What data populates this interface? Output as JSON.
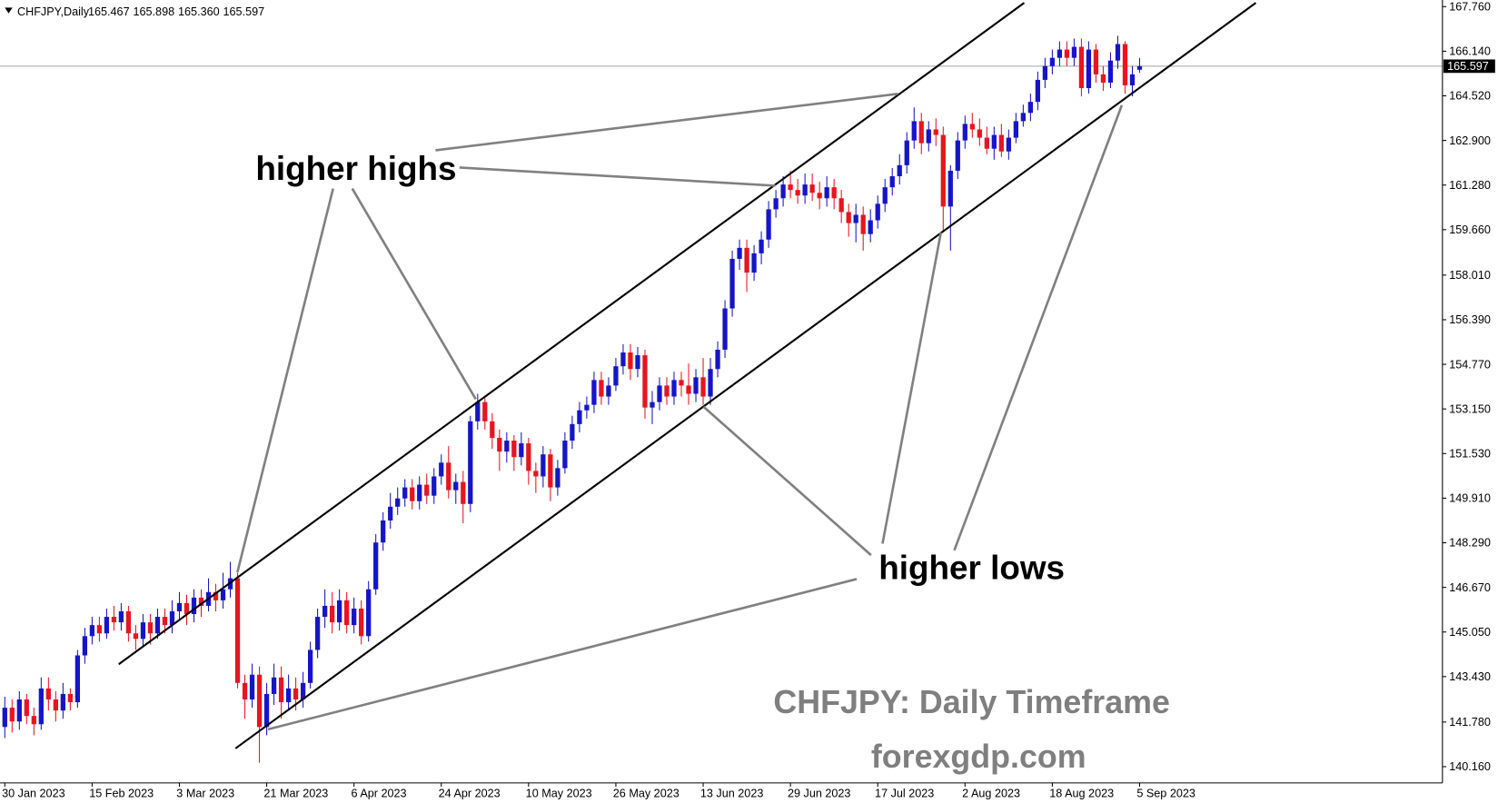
{
  "chart_data": {
    "type": "candlestick",
    "symbol": "CHFJPY,Daily",
    "ohlc_labels": [
      "165.467",
      "165.898",
      "165.360",
      "165.597"
    ],
    "price_line": {
      "value": 165.597,
      "label": "165.597"
    },
    "annotations": [
      "higher highs",
      "higher lows"
    ],
    "watermark": [
      "CHFJPY: Daily Timeframe",
      "forexgdp.com"
    ],
    "up_color": "#1515c8",
    "down_color": "#e8141e",
    "grid": false,
    "ylim": [
      139.57,
      168.0
    ],
    "yticks": [
      {
        "value": 167.76,
        "label": "167.760"
      },
      {
        "value": 166.14,
        "label": "166.140"
      },
      {
        "value": 164.52,
        "label": "164.520"
      },
      {
        "value": 162.9,
        "label": "162.900"
      },
      {
        "value": 161.28,
        "label": "161.280"
      },
      {
        "value": 159.66,
        "label": "159.660"
      },
      {
        "value": 158.01,
        "label": "158.010"
      },
      {
        "value": 156.39,
        "label": "156.390"
      },
      {
        "value": 154.77,
        "label": "154.770"
      },
      {
        "value": 153.15,
        "label": "153.150"
      },
      {
        "value": 151.53,
        "label": "151.530"
      },
      {
        "value": 149.91,
        "label": "149.910"
      },
      {
        "value": 148.29,
        "label": "148.290"
      },
      {
        "value": 146.67,
        "label": "146.670"
      },
      {
        "value": 145.05,
        "label": "145.050"
      },
      {
        "value": 143.43,
        "label": "143.430"
      },
      {
        "value": 141.78,
        "label": "141.780"
      },
      {
        "value": 140.16,
        "label": "140.160"
      }
    ],
    "categories": [
      "30 Jan 2023",
      null,
      null,
      null,
      null,
      null,
      null,
      null,
      null,
      null,
      null,
      null,
      "15 Feb 2023",
      null,
      null,
      null,
      null,
      null,
      null,
      null,
      null,
      null,
      null,
      null,
      "3 Mar 2023",
      null,
      null,
      null,
      null,
      null,
      null,
      null,
      null,
      null,
      null,
      null,
      "21 Mar 2023",
      null,
      null,
      null,
      null,
      null,
      null,
      null,
      null,
      null,
      null,
      null,
      "6 Apr 2023",
      null,
      null,
      null,
      null,
      null,
      null,
      null,
      null,
      null,
      null,
      null,
      "24 Apr 2023",
      null,
      null,
      null,
      null,
      null,
      null,
      null,
      null,
      null,
      null,
      null,
      "10 May 2023",
      null,
      null,
      null,
      null,
      null,
      null,
      null,
      null,
      null,
      null,
      null,
      "26 May 2023",
      null,
      null,
      null,
      null,
      null,
      null,
      null,
      null,
      null,
      null,
      null,
      "13 Jun 2023",
      null,
      null,
      null,
      null,
      null,
      null,
      null,
      null,
      null,
      null,
      null,
      "29 Jun 2023",
      null,
      null,
      null,
      null,
      null,
      null,
      null,
      null,
      null,
      null,
      null,
      "17 Jul 2023",
      null,
      null,
      null,
      null,
      null,
      null,
      null,
      null,
      null,
      null,
      null,
      "2 Aug 2023",
      null,
      null,
      null,
      null,
      null,
      null,
      null,
      null,
      null,
      null,
      null,
      "18 Aug 2023",
      null,
      null,
      null,
      null,
      null,
      null,
      null,
      null,
      null,
      null,
      null,
      "5 Sep 2023"
    ],
    "ohlc": [
      [
        141.6,
        142.7,
        141.2,
        142.3
      ],
      [
        142.3,
        142.6,
        141.4,
        141.8
      ],
      [
        141.8,
        142.9,
        141.5,
        142.6
      ],
      [
        142.6,
        142.8,
        141.7,
        142.0
      ],
      [
        142.0,
        142.3,
        141.3,
        141.7
      ],
      [
        141.7,
        143.4,
        141.5,
        143.0
      ],
      [
        143.0,
        143.4,
        142.2,
        142.6
      ],
      [
        142.6,
        142.9,
        141.8,
        142.2
      ],
      [
        142.2,
        143.2,
        141.9,
        142.8
      ],
      [
        142.8,
        143.0,
        142.2,
        142.5
      ],
      [
        142.5,
        144.4,
        142.3,
        144.2
      ],
      [
        144.2,
        145.2,
        143.9,
        144.9
      ],
      [
        144.9,
        145.6,
        144.6,
        145.3
      ],
      [
        145.3,
        145.6,
        144.7,
        145.0
      ],
      [
        145.0,
        145.9,
        144.8,
        145.6
      ],
      [
        145.6,
        146.0,
        145.1,
        145.4
      ],
      [
        145.4,
        146.1,
        145.1,
        145.8
      ],
      [
        145.8,
        146.0,
        144.7,
        145.0
      ],
      [
        145.0,
        145.3,
        144.4,
        144.8
      ],
      [
        144.8,
        145.7,
        144.5,
        145.4
      ],
      [
        145.4,
        145.7,
        144.6,
        145.0
      ],
      [
        145.0,
        145.9,
        144.8,
        145.6
      ],
      [
        145.6,
        145.9,
        145.0,
        145.3
      ],
      [
        145.3,
        146.2,
        145.0,
        145.8
      ],
      [
        145.8,
        146.5,
        145.5,
        146.1
      ],
      [
        146.1,
        146.4,
        145.3,
        145.7
      ],
      [
        145.7,
        146.6,
        145.4,
        146.3
      ],
      [
        146.3,
        146.6,
        145.6,
        146.0
      ],
      [
        146.0,
        147.0,
        145.8,
        146.5
      ],
      [
        146.5,
        146.8,
        145.8,
        146.2
      ],
      [
        146.2,
        147.2,
        145.9,
        146.6
      ],
      [
        146.6,
        147.6,
        146.3,
        147.0
      ],
      [
        147.0,
        147.2,
        143.0,
        143.2
      ],
      [
        143.2,
        143.5,
        141.9,
        142.6
      ],
      [
        142.6,
        143.9,
        142.3,
        143.5
      ],
      [
        143.5,
        143.8,
        140.3,
        141.6
      ],
      [
        141.6,
        143.2,
        141.3,
        142.8
      ],
      [
        142.8,
        143.9,
        142.4,
        143.4
      ],
      [
        143.4,
        143.8,
        141.9,
        142.5
      ],
      [
        142.5,
        143.5,
        142.2,
        143.0
      ],
      [
        143.0,
        143.4,
        142.2,
        142.6
      ],
      [
        142.6,
        143.6,
        142.3,
        143.2
      ],
      [
        143.2,
        144.7,
        143.0,
        144.4
      ],
      [
        144.4,
        145.9,
        144.1,
        145.6
      ],
      [
        145.6,
        146.6,
        145.2,
        146.0
      ],
      [
        146.0,
        146.5,
        145.0,
        145.4
      ],
      [
        145.4,
        146.6,
        145.1,
        146.2
      ],
      [
        146.2,
        146.5,
        145.0,
        145.3
      ],
      [
        145.3,
        146.3,
        145.0,
        145.9
      ],
      [
        145.9,
        146.2,
        144.6,
        144.9
      ],
      [
        144.9,
        146.9,
        144.7,
        146.6
      ],
      [
        146.6,
        148.6,
        146.4,
        148.3
      ],
      [
        148.3,
        149.4,
        148.0,
        149.1
      ],
      [
        149.1,
        150.1,
        148.8,
        149.6
      ],
      [
        149.6,
        150.3,
        149.3,
        149.9
      ],
      [
        149.9,
        150.6,
        149.6,
        150.3
      ],
      [
        150.3,
        150.6,
        149.5,
        149.8
      ],
      [
        149.8,
        150.7,
        149.5,
        150.4
      ],
      [
        150.4,
        150.8,
        149.7,
        150.0
      ],
      [
        150.0,
        151.0,
        149.7,
        150.7
      ],
      [
        150.7,
        151.5,
        150.4,
        151.2
      ],
      [
        151.2,
        151.8,
        149.9,
        150.2
      ],
      [
        150.2,
        150.8,
        149.7,
        150.5
      ],
      [
        150.5,
        150.9,
        149.0,
        149.7
      ],
      [
        149.7,
        152.9,
        149.4,
        152.7
      ],
      [
        152.7,
        153.7,
        152.4,
        153.4
      ],
      [
        153.4,
        153.6,
        152.4,
        152.7
      ],
      [
        152.7,
        153.0,
        151.7,
        152.1
      ],
      [
        152.1,
        152.4,
        150.9,
        151.6
      ],
      [
        151.6,
        152.3,
        151.2,
        152.0
      ],
      [
        152.0,
        152.2,
        150.9,
        151.4
      ],
      [
        151.4,
        152.3,
        151.1,
        151.9
      ],
      [
        151.9,
        152.1,
        150.4,
        150.9
      ],
      [
        150.9,
        151.2,
        150.1,
        150.7
      ],
      [
        150.7,
        151.8,
        150.3,
        151.5
      ],
      [
        151.5,
        151.7,
        149.8,
        150.3
      ],
      [
        150.3,
        151.3,
        150.0,
        151.0
      ],
      [
        151.0,
        152.3,
        150.8,
        152.0
      ],
      [
        152.0,
        152.9,
        151.7,
        152.6
      ],
      [
        152.6,
        153.4,
        152.3,
        153.1
      ],
      [
        153.1,
        153.6,
        152.8,
        153.3
      ],
      [
        153.3,
        154.5,
        153.0,
        154.2
      ],
      [
        154.2,
        154.5,
        153.3,
        153.6
      ],
      [
        153.6,
        154.3,
        153.3,
        154.0
      ],
      [
        154.0,
        155.0,
        153.8,
        154.7
      ],
      [
        154.7,
        155.5,
        154.4,
        155.2
      ],
      [
        155.2,
        155.5,
        154.2,
        154.6
      ],
      [
        154.6,
        155.4,
        154.3,
        155.1
      ],
      [
        155.1,
        155.3,
        152.8,
        153.2
      ],
      [
        153.2,
        153.8,
        152.6,
        153.4
      ],
      [
        153.4,
        154.3,
        153.1,
        154.0
      ],
      [
        154.0,
        154.3,
        153.3,
        153.6
      ],
      [
        153.6,
        154.5,
        153.3,
        154.2
      ],
      [
        154.2,
        154.5,
        153.6,
        154.0
      ],
      [
        154.0,
        154.8,
        153.3,
        153.7
      ],
      [
        153.7,
        154.6,
        153.4,
        154.3
      ],
      [
        154.3,
        155.0,
        153.3,
        153.6
      ],
      [
        153.6,
        155.0,
        153.3,
        154.6
      ],
      [
        154.6,
        155.6,
        154.3,
        155.3
      ],
      [
        155.3,
        157.1,
        155.0,
        156.8
      ],
      [
        156.8,
        158.9,
        156.5,
        158.6
      ],
      [
        158.6,
        159.3,
        158.2,
        159.0
      ],
      [
        159.0,
        159.3,
        157.4,
        158.1
      ],
      [
        158.1,
        159.1,
        157.8,
        158.8
      ],
      [
        158.8,
        159.6,
        158.4,
        159.3
      ],
      [
        159.3,
        160.7,
        159.0,
        160.4
      ],
      [
        160.4,
        161.1,
        160.1,
        160.8
      ],
      [
        160.8,
        161.6,
        160.5,
        161.3
      ],
      [
        161.3,
        161.8,
        160.8,
        161.1
      ],
      [
        161.1,
        161.5,
        160.6,
        160.9
      ],
      [
        160.9,
        161.7,
        160.6,
        161.3
      ],
      [
        161.3,
        161.7,
        160.7,
        161.0
      ],
      [
        161.0,
        161.4,
        160.4,
        160.8
      ],
      [
        160.8,
        161.6,
        160.5,
        161.2
      ],
      [
        161.2,
        161.5,
        160.4,
        160.8
      ],
      [
        160.8,
        161.1,
        159.9,
        160.3
      ],
      [
        160.3,
        160.6,
        159.4,
        159.9
      ],
      [
        159.9,
        160.6,
        159.2,
        160.2
      ],
      [
        160.2,
        160.5,
        158.9,
        159.5
      ],
      [
        159.5,
        160.4,
        159.2,
        160.0
      ],
      [
        160.0,
        160.9,
        159.7,
        160.6
      ],
      [
        160.6,
        161.5,
        160.3,
        161.2
      ],
      [
        161.2,
        161.9,
        160.9,
        161.6
      ],
      [
        161.6,
        162.4,
        161.3,
        162.0
      ],
      [
        162.0,
        163.2,
        161.7,
        162.9
      ],
      [
        162.9,
        164.1,
        162.6,
        163.6
      ],
      [
        163.6,
        163.9,
        162.4,
        162.8
      ],
      [
        162.8,
        163.6,
        162.5,
        163.3
      ],
      [
        163.3,
        163.7,
        162.7,
        163.1
      ],
      [
        163.1,
        163.4,
        159.6,
        160.5
      ],
      [
        160.5,
        162.0,
        158.9,
        161.8
      ],
      [
        161.8,
        163.2,
        161.5,
        162.9
      ],
      [
        162.9,
        163.8,
        162.6,
        163.5
      ],
      [
        163.5,
        163.9,
        163.0,
        163.3
      ],
      [
        163.3,
        163.7,
        162.7,
        163.0
      ],
      [
        163.0,
        163.4,
        162.4,
        162.6
      ],
      [
        162.6,
        163.4,
        162.2,
        163.1
      ],
      [
        163.1,
        163.5,
        162.3,
        162.5
      ],
      [
        162.5,
        163.3,
        162.2,
        163.0
      ],
      [
        163.0,
        163.9,
        162.8,
        163.6
      ],
      [
        163.6,
        164.2,
        163.4,
        163.9
      ],
      [
        163.9,
        164.6,
        163.6,
        164.3
      ],
      [
        164.3,
        165.4,
        164.0,
        165.1
      ],
      [
        165.1,
        165.9,
        164.8,
        165.6
      ],
      [
        165.6,
        166.2,
        165.3,
        165.9
      ],
      [
        165.9,
        166.5,
        165.6,
        166.2
      ],
      [
        166.2,
        166.5,
        165.6,
        165.9
      ],
      [
        165.9,
        166.6,
        165.6,
        166.3
      ],
      [
        166.3,
        166.6,
        164.5,
        164.8
      ],
      [
        164.8,
        166.5,
        164.6,
        166.2
      ],
      [
        166.2,
        166.4,
        165.0,
        165.3
      ],
      [
        165.3,
        165.6,
        164.7,
        165.0
      ],
      [
        165.0,
        166.1,
        164.8,
        165.8
      ],
      [
        165.8,
        166.7,
        165.5,
        166.4
      ],
      [
        166.4,
        166.5,
        164.6,
        164.9
      ],
      [
        164.9,
        165.6,
        164.5,
        165.3
      ],
      [
        165.467,
        165.898,
        165.36,
        165.597
      ]
    ]
  }
}
